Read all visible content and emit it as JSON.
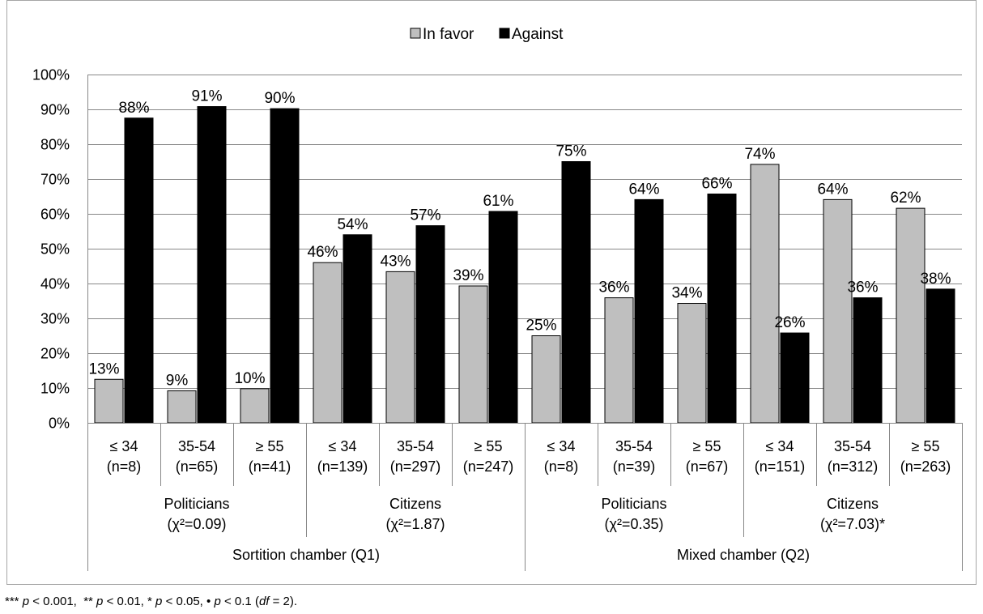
{
  "chart_data": {
    "type": "bar",
    "title": "",
    "xlabel": "",
    "ylabel": "",
    "ylim": [
      0,
      100
    ],
    "y_ticks": [
      "0%",
      "10%",
      "20%",
      "30%",
      "40%",
      "50%",
      "60%",
      "70%",
      "80%",
      "90%",
      "100%"
    ],
    "grid": true,
    "legend_position": "top-center",
    "categories": [
      "≤ 34",
      "35-54",
      "≥ 55",
      "≤ 34",
      "35-54",
      "≥ 55",
      "≤ 34",
      "35-54",
      "≥ 55",
      "≤ 34",
      "35-54",
      "≥ 55"
    ],
    "category_counts": [
      "(n=8)",
      "(n=65)",
      "(n=41)",
      "(n=139)",
      "(n=297)",
      "(n=247)",
      "(n=8)",
      "(n=39)",
      "(n=67)",
      "(n=151)",
      "(n=312)",
      "(n=263)"
    ],
    "groups": [
      {
        "label": "Politicians",
        "stat": "(χ²=0.09)"
      },
      {
        "label": "Citizens",
        "stat": "(χ²=1.87)"
      },
      {
        "label": "Politicians",
        "stat": "(χ²=0.35)"
      },
      {
        "label": "Citizens",
        "stat": "(χ²=7.03)*"
      }
    ],
    "supergroups": [
      "Sortition chamber (Q1)",
      "Mixed chamber (Q2)"
    ],
    "series": [
      {
        "name": "In favor",
        "color": "#bfbfbf",
        "values": [
          12.5,
          9.2,
          9.8,
          46,
          43.4,
          39.3,
          25,
          35.9,
          34.3,
          74.2,
          64.1,
          61.6
        ],
        "labels": [
          "13%",
          "9%",
          "10%",
          "46%",
          "43%",
          "39%",
          "25%",
          "36%",
          "34%",
          "74%",
          "64%",
          "62%"
        ]
      },
      {
        "name": "Against",
        "color": "#000000",
        "values": [
          87.5,
          90.8,
          90.2,
          54,
          56.6,
          60.7,
          75,
          64.1,
          65.7,
          25.8,
          35.9,
          38.4
        ],
        "labels": [
          "88%",
          "91%",
          "90%",
          "54%",
          "57%",
          "61%",
          "75%",
          "64%",
          "66%",
          "26%",
          "36%",
          "38%"
        ]
      }
    ]
  },
  "footnote": {
    "stars3": "***",
    "stars2": "**",
    "stars1": "*",
    "dot": "•",
    "p_sym": "p",
    "v3": "< 0.001,",
    "v2": "< 0.01,",
    "v1": "< 0.05,",
    "v0": "< 0.1",
    "df_open": "(",
    "df_sym": "df",
    "df_close": "= 2)."
  }
}
